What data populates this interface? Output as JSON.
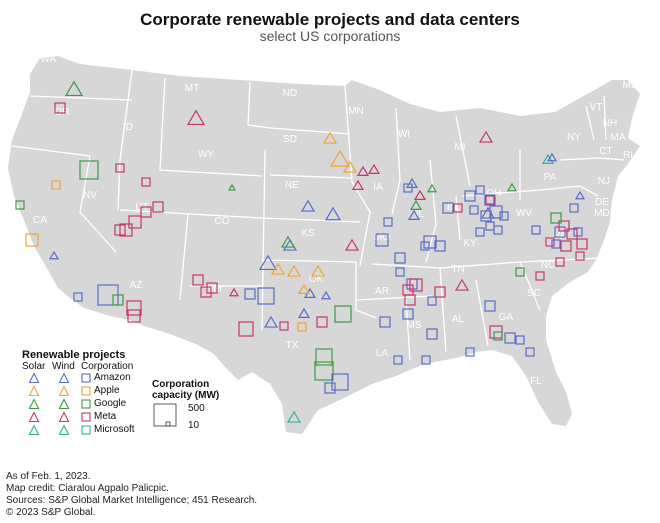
{
  "header": {
    "title": "Corporate renewable projects and data centers",
    "subtitle": "select US corporations"
  },
  "colors": {
    "land": "#d7d7d7",
    "border": "#ffffff",
    "state_label": "#ffffff",
    "Amazon": "#5b6bc9",
    "Apple": "#f0a431",
    "Google": "#3e9b45",
    "Meta": "#c8366c",
    "Microsoft": "#2eb496"
  },
  "state_labels": [
    "WA",
    "OR",
    "MT",
    "ND",
    "MN",
    "ID",
    "SD",
    "WI",
    "NY",
    "VT",
    "ME",
    "NH",
    "MA",
    "CT",
    "RI",
    "WY",
    "MI",
    "PA",
    "NJ",
    "NV",
    "NE",
    "IA",
    "OH",
    "DE",
    "MD",
    "CA",
    "UT",
    "IL",
    "IN",
    "WV",
    "CO",
    "KS",
    "MO",
    "KY",
    "VA",
    "NC",
    "TN",
    "AZ",
    "NM",
    "OK",
    "AR",
    "SC",
    "MS",
    "AL",
    "GA",
    "TX",
    "LA",
    "FL"
  ],
  "legend": {
    "title": "Renewable projects",
    "col_solar": "Solar",
    "col_wind": "Wind",
    "col_corp": "Corporation",
    "items": [
      {
        "name": "Amazon",
        "icon": "triangle-square-blue"
      },
      {
        "name": "Apple",
        "icon": "triangle-square-orange"
      },
      {
        "name": "Google",
        "icon": "triangle-square-green"
      },
      {
        "name": "Meta",
        "icon": "triangle-square-pink"
      },
      {
        "name": "Microsoft",
        "icon": "triangle-square-teal"
      }
    ],
    "capacity_title": "Corporation capacity (MW)",
    "capacity_large": "500",
    "capacity_small": "10"
  },
  "footer": {
    "date": "As of Feb. 1, 2023.",
    "credit": "Map credit: Ciaralou Agpalo Palicpic.",
    "sources": "Sources: S&P Global Market Intelligence; 451 Research.",
    "copyright": "© 2023 S&P Global."
  }
}
